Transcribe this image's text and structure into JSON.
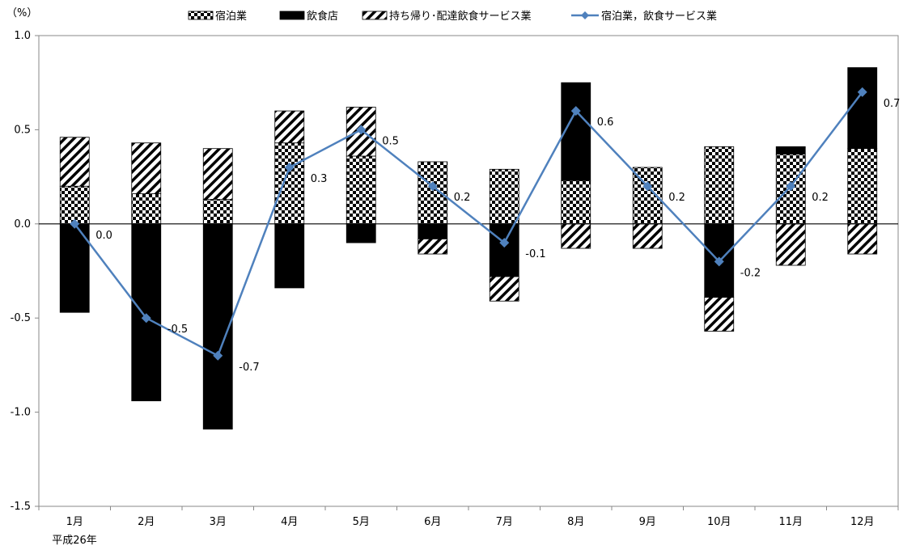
{
  "chart_data": {
    "type": "bar",
    "stacked": true,
    "unit_label": "（%）",
    "categories": [
      "1月",
      "2月",
      "3月",
      "4月",
      "5月",
      "6月",
      "7月",
      "8月",
      "9月",
      "10月",
      "11月",
      "12月"
    ],
    "year_label": "平成26年",
    "ylim": [
      -1.5,
      1.0
    ],
    "yticks": [
      1.0,
      0.5,
      0.0,
      -0.5,
      -1.0,
      -1.5
    ],
    "ytick_labels": [
      "1.0",
      "0.5",
      "0.0",
      "-0.5",
      "-1.0",
      "-1.5"
    ],
    "legend_position": "top",
    "series": [
      {
        "name": "宿泊業",
        "kind": "bar",
        "pattern": "checker",
        "values": [
          0.2,
          0.16,
          0.13,
          0.43,
          0.36,
          0.33,
          0.29,
          0.23,
          0.3,
          0.41,
          0.37,
          0.4
        ]
      },
      {
        "name": "飲食店",
        "kind": "bar",
        "pattern": "solid",
        "values": [
          -0.47,
          -0.94,
          -1.09,
          -0.34,
          -0.1,
          -0.08,
          -0.28,
          0.52,
          0.0,
          -0.39,
          0.04,
          0.43
        ]
      },
      {
        "name": "持ち帰り･配達飲食サービス業",
        "kind": "bar",
        "pattern": "hatch",
        "values": [
          0.26,
          0.27,
          0.27,
          0.17,
          0.26,
          -0.08,
          -0.13,
          -0.13,
          -0.13,
          -0.18,
          -0.22,
          -0.16
        ]
      },
      {
        "name": "宿泊業，飲食サービス業",
        "kind": "line",
        "color": "#4F81BD",
        "values": [
          0.0,
          -0.5,
          -0.7,
          0.3,
          0.5,
          0.2,
          -0.1,
          0.6,
          0.2,
          -0.2,
          0.2,
          0.7
        ],
        "labels": [
          "0.0",
          "-0.5",
          "-0.7",
          "0.3",
          "0.5",
          "0.2",
          "-0.1",
          "0.6",
          "0.2",
          "-0.2",
          "0.2",
          "0.7"
        ]
      }
    ]
  }
}
